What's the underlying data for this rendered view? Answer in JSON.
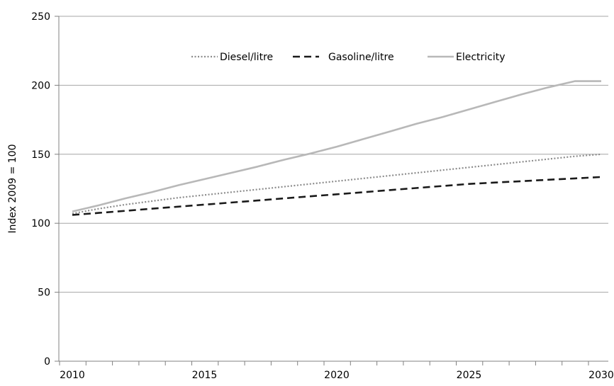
{
  "chart_data": {
    "type": "line",
    "x": [
      2010,
      2011,
      2012,
      2013,
      2014,
      2015,
      2016,
      2017,
      2018,
      2019,
      2020,
      2021,
      2022,
      2023,
      2024,
      2025,
      2026,
      2027,
      2028,
      2029,
      2030
    ],
    "series": [
      {
        "name": "Diesel/litre",
        "style": "dotted",
        "color": "#8c8c8c",
        "values": [
          107,
          110.5,
          113.5,
          116,
          118.5,
          120.5,
          122.5,
          124.5,
          126.5,
          128.5,
          130.5,
          132.5,
          134.5,
          136.5,
          138.5,
          140.5,
          142.5,
          144.5,
          146.5,
          148.5,
          150
        ]
      },
      {
        "name": "Gasoline/litre",
        "style": "dashed",
        "color": "#1a1a1a",
        "values": [
          106,
          107.5,
          109,
          110.5,
          112,
          113.5,
          115,
          116.5,
          118,
          119.5,
          121,
          122.5,
          124,
          125.5,
          127,
          128.5,
          129.5,
          130.5,
          131.5,
          132.5,
          133.5
        ]
      },
      {
        "name": "Electricity",
        "style": "solid",
        "color": "#b8b8b8",
        "values": [
          108.5,
          113,
          118,
          122.5,
          127.5,
          132,
          136.5,
          141,
          146,
          150.5,
          155.5,
          161,
          166.5,
          172,
          177,
          182.5,
          188,
          193.5,
          198.5,
          203,
          203
        ]
      }
    ],
    "xticks": [
      "2010",
      "2015",
      "2020",
      "2025",
      "2030"
    ],
    "yticks": [
      "0",
      "50",
      "100",
      "150",
      "200",
      "250"
    ],
    "xlabel": "",
    "ylabel": "Index  2009 = 100",
    "title": "",
    "xlim": [
      2010,
      2030
    ],
    "ylim": [
      0,
      250
    ],
    "grid": "horizontal",
    "legend": "top-center"
  }
}
